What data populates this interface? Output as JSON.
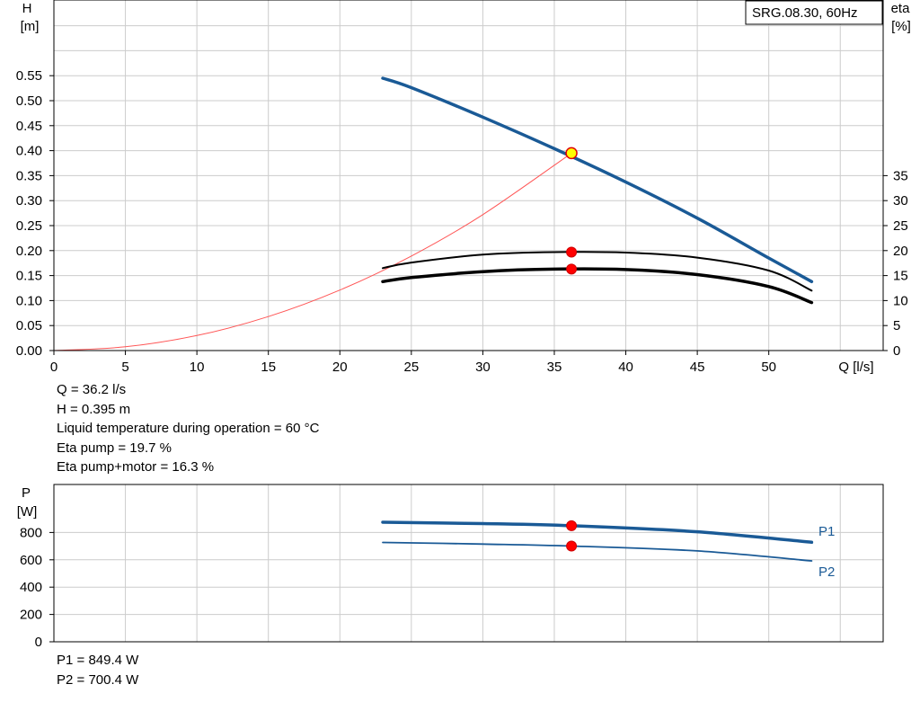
{
  "chart_data": [
    {
      "type": "line",
      "legend_box": "SRG.08.30, 60Hz",
      "xlabel": "Q [l/s]",
      "ylabel_left": [
        "H",
        "[m]"
      ],
      "ylabel_right": [
        "eta",
        "[%]"
      ],
      "xlim": [
        0,
        58
      ],
      "x_ticks": [
        0,
        5,
        10,
        15,
        20,
        25,
        30,
        35,
        40,
        45,
        50
      ],
      "ylim_left": [
        0,
        0.55
      ],
      "y_ticks_left": [
        "0.00",
        "0.05",
        "0.10",
        "0.15",
        "0.20",
        "0.25",
        "0.30",
        "0.35",
        "0.40",
        "0.45",
        "0.50",
        "0.55"
      ],
      "y_ticks_right": [
        0,
        5,
        10,
        15,
        20,
        25,
        30,
        35
      ],
      "eta_scale_per_H": 100,
      "grid": true,
      "series": [
        {
          "id": "head",
          "axis": "left",
          "color": "#1a5a96",
          "width": 3.5,
          "x": [
            23,
            25,
            30,
            35,
            40,
            45,
            50,
            53
          ],
          "y": [
            0.545,
            0.526,
            0.467,
            0.404,
            0.337,
            0.265,
            0.185,
            0.138
          ]
        },
        {
          "id": "system",
          "axis": "left",
          "color": "#ff5555",
          "width": 1,
          "x": [
            0,
            5,
            10,
            15,
            20,
            25,
            30,
            36.2
          ],
          "y": [
            0,
            0.0075,
            0.03,
            0.068,
            0.121,
            0.189,
            0.272,
            0.395
          ]
        },
        {
          "id": "eta-pump",
          "axis": "right",
          "color": "#000000",
          "width": 2,
          "x": [
            23,
            25,
            30,
            35,
            40,
            45,
            50,
            53
          ],
          "y": [
            16.5,
            17.6,
            19.2,
            19.7,
            19.6,
            18.6,
            16.0,
            12.0
          ]
        },
        {
          "id": "eta-pump-motor",
          "axis": "right",
          "color": "#000000",
          "width": 3.5,
          "x": [
            23,
            25,
            30,
            35,
            40,
            45,
            50,
            53
          ],
          "y": [
            13.8,
            14.6,
            15.8,
            16.3,
            16.2,
            15.2,
            12.8,
            9.6
          ]
        }
      ],
      "operating_point": {
        "q": 36.2,
        "h": 0.395,
        "eta_pump": 19.7,
        "eta_pump_motor": 16.3
      }
    },
    {
      "type": "line",
      "ylabel": [
        "P",
        "[W]"
      ],
      "xlim": [
        0,
        58
      ],
      "ylim": [
        0,
        1000
      ],
      "y_ticks": [
        0,
        200,
        400,
        600,
        800
      ],
      "grid": true,
      "series": [
        {
          "id": "p1",
          "name": "P1",
          "color": "#1a5a96",
          "width": 3.5,
          "x": [
            23,
            30,
            36.2,
            45,
            53
          ],
          "y": [
            875,
            865,
            849.4,
            805,
            728
          ]
        },
        {
          "id": "p2",
          "name": "P2",
          "color": "#1a5a96",
          "width": 1.8,
          "x": [
            23,
            30,
            36.2,
            45,
            53
          ],
          "y": [
            727,
            715,
            700.4,
            665,
            592
          ]
        }
      ],
      "operating_point": {
        "q": 36.2,
        "p1": 849.4,
        "p2": 700.4
      }
    }
  ],
  "readout": {
    "q": "Q = 36.2 l/s",
    "h": "H = 0.395 m",
    "temp": "Liquid temperature during operation = 60 °C",
    "eta_pump": "Eta pump = 19.7 %",
    "eta_pump_motor": "Eta pump+motor = 16.3 %",
    "p1": "P1 = 849.4 W",
    "p2": "P2 = 700.4 W"
  }
}
